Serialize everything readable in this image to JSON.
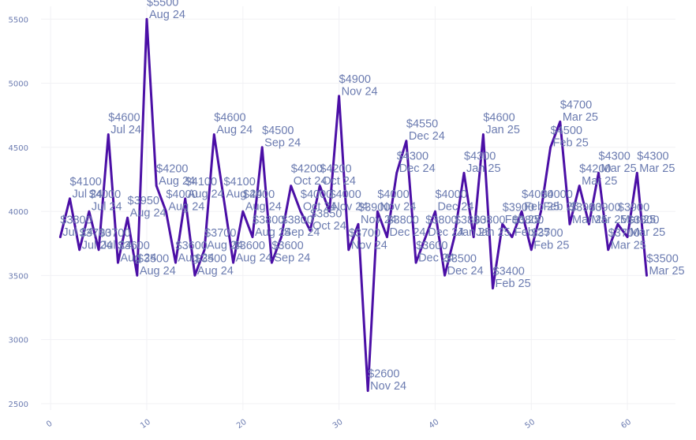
{
  "colors": {
    "line": "#4b0fa6",
    "label": "#6b7bb0",
    "tick": "#6b7bb0",
    "grid": "#f1f1f4"
  },
  "chart_data": {
    "type": "line",
    "title": "",
    "xlabel": "",
    "ylabel": "",
    "xlim": [
      -1,
      65
    ],
    "ylim": [
      2450,
      5600
    ],
    "grid": true,
    "x_ticks": [
      0,
      10,
      20,
      30,
      40,
      50,
      60
    ],
    "y_ticks": [
      2500,
      3000,
      3500,
      4000,
      4500,
      5000,
      5500
    ],
    "series": [
      {
        "x": [
          1,
          2,
          3,
          4,
          5,
          6,
          7,
          8,
          9,
          10,
          11,
          12,
          13,
          14,
          15,
          16,
          17,
          18,
          19,
          20,
          21,
          22,
          23,
          24,
          25,
          26,
          27,
          28,
          29,
          30,
          31,
          32,
          33,
          34,
          35,
          36,
          37,
          38,
          39,
          40,
          41,
          42,
          43,
          44,
          45,
          46,
          47,
          48,
          49,
          50,
          51,
          52,
          53,
          54,
          55,
          56,
          57,
          58,
          59,
          60,
          61,
          62
        ],
        "values": [
          3800,
          4100,
          3700,
          4000,
          3700,
          4600,
          3600,
          3950,
          3500,
          5500,
          4200,
          4000,
          3600,
          4100,
          3500,
          3700,
          4600,
          4100,
          3600,
          4000,
          3800,
          4500,
          3600,
          3800,
          4200,
          4000,
          3850,
          4200,
          4000,
          4900,
          3700,
          3900,
          2600,
          4000,
          3800,
          4300,
          4550,
          3600,
          3800,
          4000,
          3500,
          3800,
          4300,
          3800,
          4600,
          3400,
          3900,
          3800,
          4000,
          3700,
          4000,
          4500,
          4700,
          3900,
          4200,
          3900,
          4300,
          3700,
          3900,
          3800,
          4300,
          3500
        ],
        "labels": [
          [
            "$3800",
            "Jul 24"
          ],
          [
            "$4100",
            "Jul 24"
          ],
          [
            "$3700",
            "Jul 24"
          ],
          [
            "$4000",
            "Jul 24"
          ],
          [
            "$3700",
            "Jul 24"
          ],
          [
            "$4600",
            "Jul 24"
          ],
          [
            "$3600",
            "Aug 24"
          ],
          [
            "$3950",
            "Aug 24"
          ],
          [
            "$3500",
            "Aug 24"
          ],
          [
            "$5500",
            "Aug 24"
          ],
          [
            "$4200",
            "Aug 24"
          ],
          [
            "$4000",
            "Aug 24"
          ],
          [
            "$3600",
            "Aug 24"
          ],
          [
            "$4100",
            "Aug 24"
          ],
          [
            "$3500",
            "Aug 24"
          ],
          [
            "$3700",
            "Aug 24"
          ],
          [
            "$4600",
            "Aug 24"
          ],
          [
            "$4100",
            "Aug 24"
          ],
          [
            "$3600",
            "Aug 24"
          ],
          [
            "$4000",
            "Aug 24"
          ],
          [
            "$3800",
            "Aug 24"
          ],
          [
            "$4500",
            "Sep 24"
          ],
          [
            "$3600",
            "Sep 24"
          ],
          [
            "$3800",
            "Sep 24"
          ],
          [
            "$4200",
            "Oct 24"
          ],
          [
            "$4000",
            "Oct 24"
          ],
          [
            "$3850",
            "Oct 24"
          ],
          [
            "$4200",
            "Oct 24"
          ],
          [
            "$4000",
            "Nov 24"
          ],
          [
            "$4900",
            "Nov 24"
          ],
          [
            "$3700",
            "Nov 24"
          ],
          [
            "$3900",
            "Nov 24"
          ],
          [
            "$2600",
            "Nov 24"
          ],
          [
            "$4000",
            "Nov 24"
          ],
          [
            "$3800",
            "Dec 24"
          ],
          [
            "$4300",
            "Dec 24"
          ],
          [
            "$4550",
            "Dec 24"
          ],
          [
            "$3600",
            "Dec 24"
          ],
          [
            "$3800",
            "Dec 24"
          ],
          [
            "$4000",
            "Dec 24"
          ],
          [
            "$3500",
            "Dec 24"
          ],
          [
            "$3800",
            "Jan 25"
          ],
          [
            "$4300",
            "Jan 25"
          ],
          [
            "$3800",
            "Jan 25"
          ],
          [
            "$4600",
            "Jan 25"
          ],
          [
            "$3400",
            "Feb 25"
          ],
          [
            "$3900",
            "Feb 25"
          ],
          [
            "$3800",
            "Feb 25"
          ],
          [
            "$4000",
            "Feb 25"
          ],
          [
            "$3700",
            "Feb 25"
          ],
          [
            "$4000",
            "Feb 25"
          ],
          [
            "$4500",
            "Feb 25"
          ],
          [
            "$4700",
            "Mar 25"
          ],
          [
            "$3900",
            "Mar 25"
          ],
          [
            "$4200",
            "Mar 25"
          ],
          [
            "$3900",
            "Mar 25"
          ],
          [
            "$4300",
            "Mar 25"
          ],
          [
            "$3700",
            "Mar 25"
          ],
          [
            "$3900",
            "Mar 25"
          ],
          [
            "$3800",
            "Mar 25"
          ],
          [
            "$4300",
            "Mar 25"
          ],
          [
            "$3500",
            "Mar 25"
          ]
        ]
      }
    ]
  }
}
